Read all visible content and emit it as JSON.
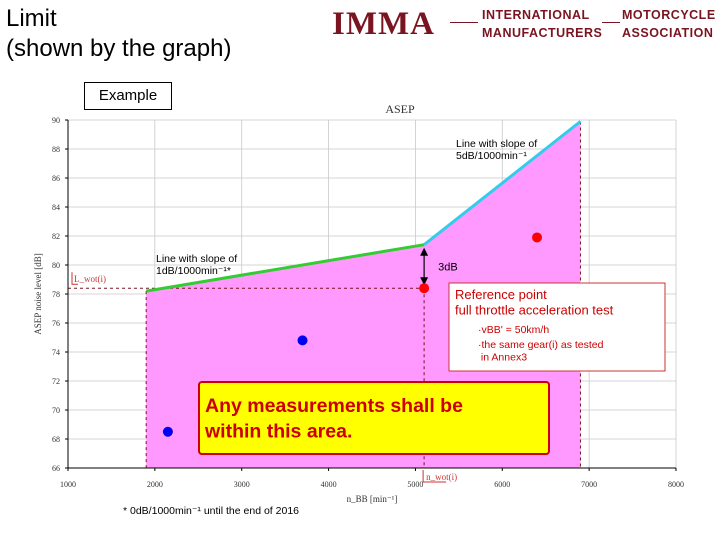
{
  "page": {
    "title": "Limit\n(shown by the graph)",
    "example_label": "Example"
  },
  "logo": {
    "mark": "IMMA",
    "line1_left": "INTERNATIONAL",
    "line2_left": "MANUFACTURERS",
    "line1_right": "MOTORCYCLE",
    "line2_right": "ASSOCIATION"
  },
  "chart_data": {
    "type": "area",
    "title": "ASEP",
    "ylabel": "ASEP noise level [dB]",
    "xlabel": "n_BB [min⁻¹]",
    "xlim": [
      1000,
      8000
    ],
    "ylim": [
      66,
      90
    ],
    "xticks": [
      1000,
      2000,
      3000,
      4000,
      5000,
      6000,
      7000,
      8000
    ],
    "yticks": [
      66,
      68,
      70,
      72,
      74,
      76,
      78,
      80,
      82,
      84,
      86,
      88,
      90
    ],
    "grid": true,
    "limit_area": {
      "color": "#ff99ff",
      "x": [
        1900,
        5100,
        6900
      ],
      "y": [
        78.2,
        81.4,
        89.9
      ]
    },
    "limit_segments": [
      {
        "label": "Line with slope of\n1dB/1000min⁻¹*",
        "x": [
          1900,
          5100
        ],
        "y": [
          78.2,
          81.4
        ],
        "color": "#33cc33"
      },
      {
        "label": "Line with slope of\n5dB/1000min⁻¹",
        "x": [
          5100,
          6900
        ],
        "y": [
          81.4,
          89.9
        ],
        "color": "#33ccee"
      }
    ],
    "reference_point": {
      "x": 5100,
      "y": 78.4,
      "color": "#ff0000"
    },
    "offset_label": "3dB",
    "lwot_label": "L_wot(i)",
    "nwot_label": "n_wot(i)",
    "points": [
      {
        "x": 6400,
        "y": 81.9,
        "color": "#ff0000"
      },
      {
        "x": 3700,
        "y": 74.8,
        "color": "#0000ee"
      },
      {
        "x": 2150,
        "y": 68.5,
        "color": "#0000ee"
      }
    ],
    "reference_box": {
      "title": "Reference point\nfull throttle acceleration test",
      "note1": "·vBB' = 50km/h",
      "note2": "·the same gear(i) as tested\n  in Annex3"
    },
    "callout": {
      "text": "Any measurements shall be\nwithin this area.",
      "bg": "#ffff00",
      "border": "#cc0000",
      "color": "#cc0000"
    },
    "footnote": "* 0dB/1000min⁻¹ until the end of 2016"
  }
}
